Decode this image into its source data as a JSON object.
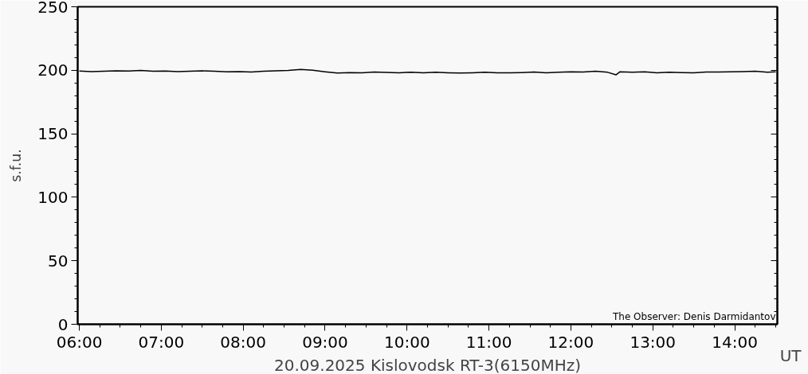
{
  "chart_data": {
    "type": "line",
    "title": "20.09.2025 Kislovodsk RT-3(6150MHz)",
    "xlabel": "UT",
    "ylabel": "s.f.u.",
    "annotations": [
      "The Observer: Denis Darmidantov"
    ],
    "x": [
      6.0,
      6.15,
      6.3,
      6.45,
      6.6,
      6.75,
      6.9,
      7.05,
      7.2,
      7.35,
      7.5,
      7.65,
      7.8,
      7.95,
      8.1,
      8.25,
      8.4,
      8.55,
      8.7,
      8.85,
      9.0,
      9.15,
      9.3,
      9.45,
      9.6,
      9.75,
      9.9,
      10.05,
      10.2,
      10.35,
      10.5,
      10.65,
      10.8,
      10.95,
      11.1,
      11.25,
      11.4,
      11.55,
      11.7,
      11.85,
      12.0,
      12.15,
      12.3,
      12.45,
      12.55,
      12.6,
      12.75,
      12.9,
      13.05,
      13.2,
      13.35,
      13.5,
      13.65,
      13.8,
      13.95,
      14.1,
      14.25,
      14.4,
      14.5
    ],
    "series": [
      {
        "color": "#000000",
        "values": [
          199.4,
          199.0,
          199.2,
          199.6,
          199.4,
          199.8,
          199.3,
          199.4,
          199.0,
          199.2,
          199.5,
          199.2,
          198.8,
          199.0,
          198.6,
          199.2,
          199.5,
          199.8,
          200.6,
          200.0,
          198.8,
          197.8,
          198.2,
          198.0,
          198.6,
          198.3,
          198.0,
          198.5,
          198.0,
          198.4,
          198.0,
          197.8,
          198.0,
          198.4,
          198.0,
          198.0,
          198.2,
          198.6,
          198.0,
          198.4,
          198.8,
          198.6,
          199.2,
          198.4,
          196.4,
          198.8,
          198.4,
          198.8,
          198.0,
          198.4,
          198.2,
          198.0,
          198.6,
          198.6,
          198.8,
          199.0,
          199.2,
          198.4,
          198.8
        ]
      }
    ],
    "xlim": [
      5.98,
      14.52
    ],
    "ylim": [
      0,
      250
    ],
    "xticks": [
      {
        "value": 6,
        "label": "06:00"
      },
      {
        "value": 7,
        "label": "07:00"
      },
      {
        "value": 8,
        "label": "08:00"
      },
      {
        "value": 9,
        "label": "09:00"
      },
      {
        "value": 10,
        "label": "10:00"
      },
      {
        "value": 11,
        "label": "11:00"
      },
      {
        "value": 12,
        "label": "12:00"
      },
      {
        "value": 13,
        "label": "13:00"
      },
      {
        "value": 14,
        "label": "14:00"
      }
    ],
    "yticks": [
      0,
      50,
      100,
      150,
      200,
      250
    ],
    "grid": false,
    "marker": "none",
    "line_style": "solid"
  }
}
